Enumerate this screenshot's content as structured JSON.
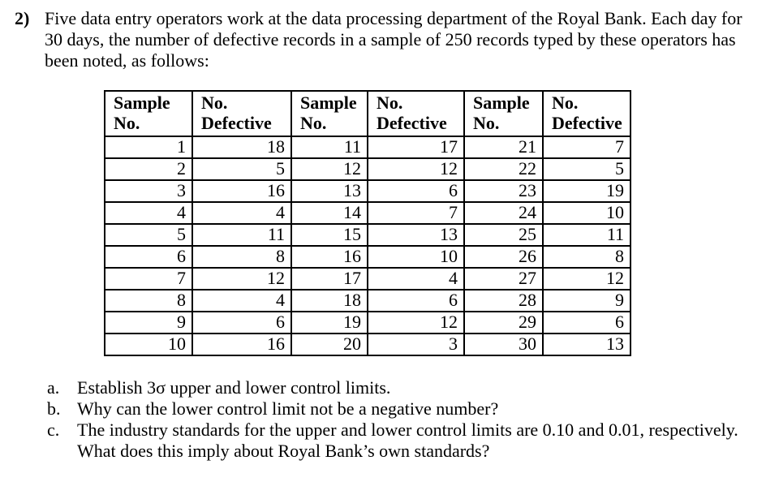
{
  "document": {
    "question_number": "2)",
    "intro_lines": [
      "Five data entry operators work at the data processing department of the Royal Bank. Each day for",
      "30 days, the number of defective records in a sample of 250 records typed by these operators has",
      "been noted, as follows:"
    ],
    "table": {
      "headers": [
        {
          "line1": "Sample",
          "line2": "No."
        },
        {
          "line1": "No.",
          "line2": "Defective"
        },
        {
          "line1": "Sample",
          "line2": "No."
        },
        {
          "line1": "No.",
          "line2": "Defective"
        },
        {
          "line1": "Sample",
          "line2": "No."
        },
        {
          "line1": "No.",
          "line2": "Defective"
        }
      ],
      "rows": [
        [
          "1",
          "18",
          "11",
          "17",
          "21",
          "7"
        ],
        [
          "2",
          "5",
          "12",
          "12",
          "22",
          "5"
        ],
        [
          "3",
          "16",
          "13",
          "6",
          "23",
          "19"
        ],
        [
          "4",
          "4",
          "14",
          "7",
          "24",
          "10"
        ],
        [
          "5",
          "11",
          "15",
          "13",
          "25",
          "11"
        ],
        [
          "6",
          "8",
          "16",
          "10",
          "26",
          "8"
        ],
        [
          "7",
          "12",
          "17",
          "4",
          "27",
          "12"
        ],
        [
          "8",
          "4",
          "18",
          "6",
          "28",
          "9"
        ],
        [
          "9",
          "6",
          "19",
          "12",
          "29",
          "6"
        ],
        [
          "10",
          "16",
          "20",
          "3",
          "30",
          "13"
        ]
      ]
    },
    "subquestions": [
      {
        "label": "a.",
        "lines": [
          "Establish 3σ upper and lower control limits."
        ]
      },
      {
        "label": "b.",
        "lines": [
          "Why can the lower control limit not be a negative number?"
        ]
      },
      {
        "label": "c.",
        "lines": [
          "The industry standards for the upper and lower control limits are 0.10 and 0.01, respectively.",
          "What does this imply about Royal Bank’s own standards?"
        ]
      }
    ]
  }
}
